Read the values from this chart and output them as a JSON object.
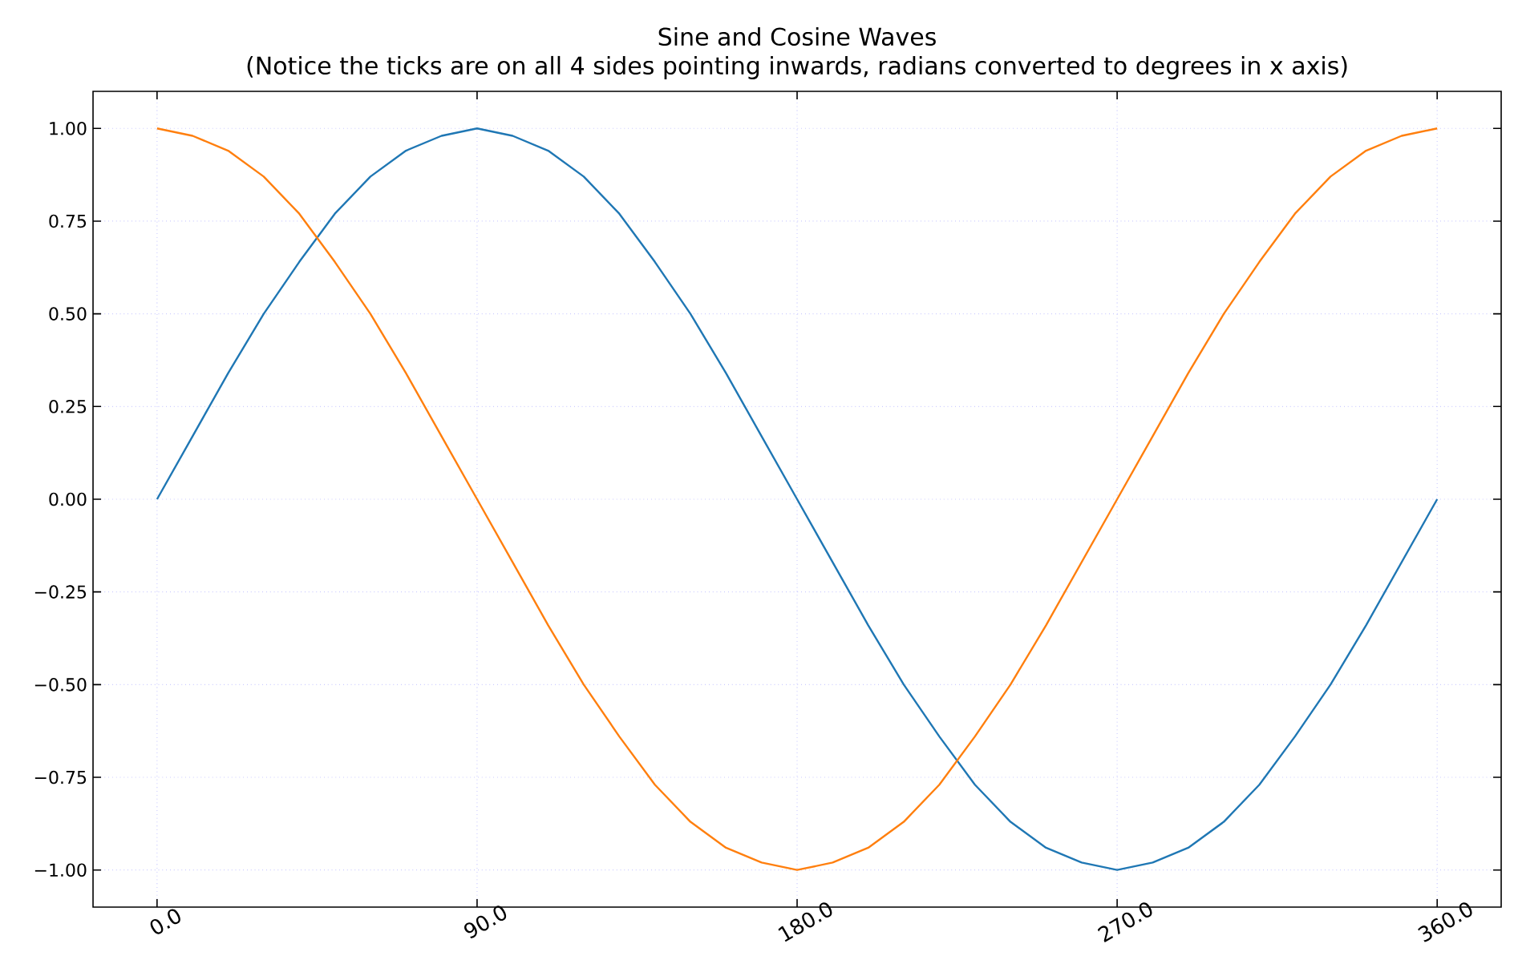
{
  "chart_data": {
    "type": "line",
    "title": "Sine and Cosine Waves",
    "subtitle": "(Notice the ticks are on all 4 sides pointing inwards, radians converted to degrees in x axis)",
    "x": [
      0,
      10,
      20,
      30,
      40,
      50,
      60,
      70,
      80,
      90,
      100,
      110,
      120,
      130,
      140,
      150,
      160,
      170,
      180,
      190,
      200,
      210,
      220,
      230,
      240,
      250,
      260,
      270,
      280,
      290,
      300,
      310,
      320,
      330,
      340,
      350,
      360
    ],
    "series": [
      {
        "color": "#1f77b4",
        "values": [
          0,
          0.17,
          0.34,
          0.5,
          0.64,
          0.77,
          0.87,
          0.94,
          0.98,
          1,
          0.98,
          0.94,
          0.87,
          0.77,
          0.64,
          0.5,
          0.34,
          0.17,
          0,
          -0.17,
          -0.34,
          -0.5,
          -0.64,
          -0.77,
          -0.87,
          -0.94,
          -0.98,
          -1,
          -0.98,
          -0.94,
          -0.87,
          -0.77,
          -0.64,
          -0.5,
          -0.34,
          -0.17,
          0
        ]
      },
      {
        "color": "#ff7f0e",
        "values": [
          1,
          0.98,
          0.94,
          0.87,
          0.77,
          0.64,
          0.5,
          0.34,
          0.17,
          0,
          -0.17,
          -0.34,
          -0.5,
          -0.64,
          -0.77,
          -0.87,
          -0.94,
          -0.98,
          -1,
          -0.98,
          -0.94,
          -0.87,
          -0.77,
          -0.64,
          -0.5,
          -0.34,
          -0.17,
          0,
          0.17,
          0.34,
          0.5,
          0.64,
          0.77,
          0.87,
          0.94,
          0.98,
          1
        ]
      }
    ],
    "xlim": [
      -18,
      378
    ],
    "ylim": [
      -1.1,
      1.1
    ],
    "xticks": [
      {
        "value": 0,
        "label": "0.0"
      },
      {
        "value": 90,
        "label": "90.0"
      },
      {
        "value": 180,
        "label": "180.0"
      },
      {
        "value": 270,
        "label": "270.0"
      },
      {
        "value": 360,
        "label": "360.0"
      }
    ],
    "yticks": [
      {
        "value": -1,
        "label": "−1.00"
      },
      {
        "value": -0.75,
        "label": "−0.75"
      },
      {
        "value": -0.5,
        "label": "−0.50"
      },
      {
        "value": -0.25,
        "label": "−0.25"
      },
      {
        "value": 0,
        "label": "0.00"
      },
      {
        "value": 0.25,
        "label": "0.25"
      },
      {
        "value": 0.5,
        "label": "0.50"
      },
      {
        "value": 0.75,
        "label": "0.75"
      },
      {
        "value": 1,
        "label": "1.00"
      }
    ],
    "grid": true,
    "marker": "none",
    "line_style": "solid"
  }
}
